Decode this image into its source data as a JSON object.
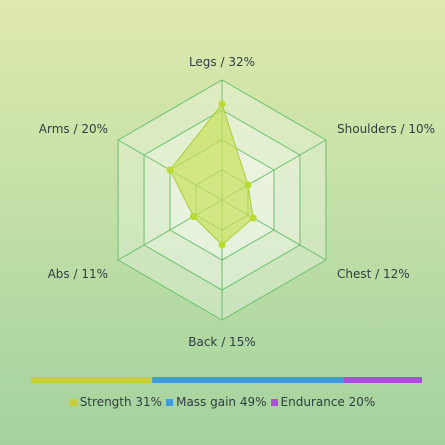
{
  "chart_data": [
    {
      "type": "radar",
      "axes": [
        {
          "name": "Legs",
          "value": 32,
          "label": "Legs / 32%"
        },
        {
          "name": "Shoulders",
          "value": 10,
          "label": "Shoulders / 10%"
        },
        {
          "name": "Chest",
          "value": 12,
          "label": "Chest / 12%"
        },
        {
          "name": "Back",
          "value": 15,
          "label": "Back / 15%"
        },
        {
          "name": "Abs",
          "value": 11,
          "label": "Abs / 11%"
        },
        {
          "name": "Arms",
          "value": 20,
          "label": "Arms / 20%"
        }
      ],
      "range": [
        0,
        40
      ],
      "rings": 4,
      "colors": {
        "fill": "#c8e05a",
        "stroke": "#a8cf3a",
        "grid": "#6fbf6f",
        "point": "#b9dc2f"
      }
    },
    {
      "type": "bar",
      "orientation": "horizontal-stacked",
      "series": [
        {
          "name": "Strength",
          "value": 31,
          "color": "#c6cf3a"
        },
        {
          "name": "Mass gain",
          "value": 49,
          "color": "#3d9bd6"
        },
        {
          "name": "Endurance",
          "value": 20,
          "color": "#a94fd8"
        }
      ],
      "legend": [
        {
          "label": "Strength 31%",
          "color": "#c6cf3a"
        },
        {
          "label": "Mass gain 49%",
          "color": "#3d9bd6"
        },
        {
          "label": "Endurance 20%",
          "color": "#a94fd8"
        }
      ]
    }
  ]
}
